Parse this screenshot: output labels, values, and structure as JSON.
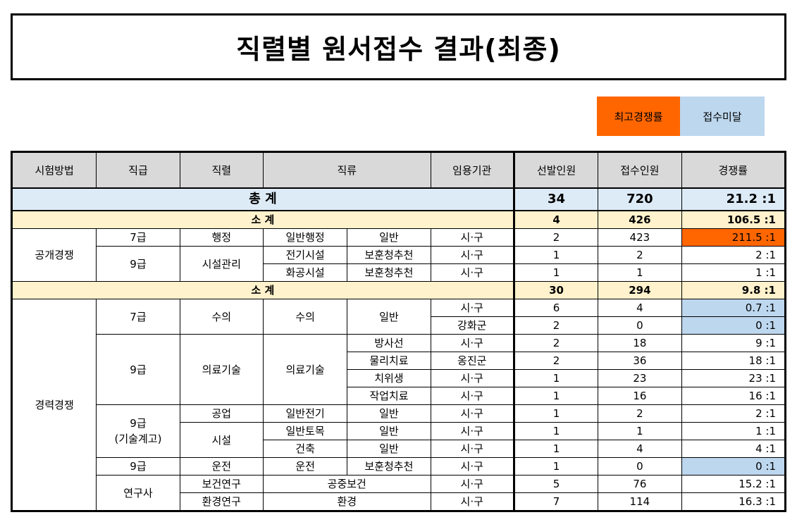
{
  "title": "직렬별 원서접수 결과(최종)",
  "legend": {
    "highest": "최고경쟁률",
    "below": "접수미달"
  },
  "colors": {
    "highest": "#ff6600",
    "below": "#bdd7ee",
    "total": "#ddebf7",
    "subtotal": "#fff2cc",
    "header": "#d9d9d9"
  },
  "headers": [
    "시험방법",
    "직급",
    "직렬",
    "직류",
    "임용기관",
    "선발인원",
    "접수인원",
    "경쟁률"
  ],
  "total": {
    "label": "총 계",
    "selected": "34",
    "applied": "720",
    "rate": "21.2 :1"
  },
  "open": {
    "method": "공개경쟁",
    "subtotal": {
      "label": "소 계",
      "selected": "4",
      "applied": "426",
      "rate": "106.5 :1"
    },
    "rows": [
      {
        "grade": "7급",
        "series": "행정",
        "class1": "일반행정",
        "class2": "일반",
        "agency": "시·구",
        "selected": "2",
        "applied": "423",
        "rate": "211.5 :1"
      },
      {
        "grade": "9급",
        "series": "시설관리",
        "class1": "전기시설",
        "class2": "보훈청추천",
        "agency": "시·구",
        "selected": "1",
        "applied": "2",
        "rate": "2 :1"
      },
      {
        "class1": "화공시설",
        "class2": "보훈청추천",
        "agency": "시·구",
        "selected": "1",
        "applied": "1",
        "rate": "1 :1"
      }
    ]
  },
  "career": {
    "method": "경력경쟁",
    "subtotal": {
      "label": "소 계",
      "selected": "30",
      "applied": "294",
      "rate": "9.8 :1"
    },
    "rows": [
      {
        "grade": "7급",
        "series": "수의",
        "class1": "수의",
        "class2": "일반",
        "agency": "시·구",
        "selected": "6",
        "applied": "4",
        "rate": "0.7 :1"
      },
      {
        "agency": "강화군",
        "selected": "2",
        "applied": "0",
        "rate": "0 :1"
      },
      {
        "grade": "9급",
        "series": "의료기술",
        "class1": "의료기술",
        "class2": "방사선",
        "agency": "시·구",
        "selected": "2",
        "applied": "18",
        "rate": "9 :1"
      },
      {
        "class2": "물리치료",
        "agency": "옹진군",
        "selected": "2",
        "applied": "36",
        "rate": "18 :1"
      },
      {
        "class2": "치위생",
        "agency": "시·구",
        "selected": "1",
        "applied": "23",
        "rate": "23 :1"
      },
      {
        "class2": "작업치료",
        "agency": "시·구",
        "selected": "1",
        "applied": "16",
        "rate": "16 :1"
      },
      {
        "grade": "9급",
        "grade2": "(기술계고)",
        "series": "공업",
        "class1": "일반전기",
        "class2": "일반",
        "agency": "시·구",
        "selected": "1",
        "applied": "2",
        "rate": "2 :1"
      },
      {
        "series": "시설",
        "class1": "일반토목",
        "class2": "일반",
        "agency": "시·구",
        "selected": "1",
        "applied": "1",
        "rate": "1 :1"
      },
      {
        "class1": "건축",
        "class2": "일반",
        "agency": "시·구",
        "selected": "1",
        "applied": "4",
        "rate": "4 :1"
      },
      {
        "grade": "9급",
        "series": "운전",
        "class1": "운전",
        "class2": "보훈청추천",
        "agency": "시·구",
        "selected": "1",
        "applied": "0",
        "rate": "0 :1"
      },
      {
        "grade": "연구사",
        "series": "보건연구",
        "class": "공중보건",
        "agency": "시·구",
        "selected": "5",
        "applied": "76",
        "rate": "15.2 :1"
      },
      {
        "series": "환경연구",
        "class": "환경",
        "agency": "시·구",
        "selected": "7",
        "applied": "114",
        "rate": "16.3 :1"
      }
    ]
  }
}
